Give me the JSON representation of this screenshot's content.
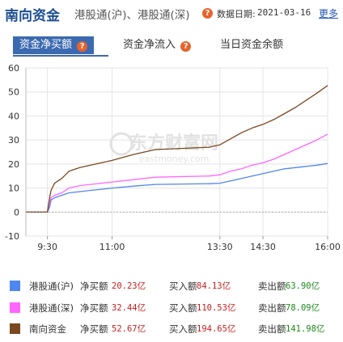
{
  "header": {
    "title": "南向资金",
    "subtitle": "港股通(沪)、港股通(深)",
    "date_label": "数据日期:",
    "date_value": "2021-03-16",
    "more_label": "更多"
  },
  "tabs": [
    {
      "label": "资金净买额",
      "active": true
    },
    {
      "label": "资金净流入",
      "active": false
    },
    {
      "label": "当日资金余额",
      "active": false
    }
  ],
  "watermark": {
    "cn": "东方财富网",
    "en": "eastmoney.com"
  },
  "colors": {
    "hk_sh": "#4f86ef",
    "hk_sz": "#ff66ff",
    "southbound": "#7a4820",
    "accent": "#3c6ab0",
    "buy": "#c81d1d",
    "sell": "#1b8a1b"
  },
  "chart_data": {
    "type": "line",
    "x_ticks": [
      "9:30",
      "11:00",
      "13:30",
      "14:30",
      "16:00"
    ],
    "y_ticks": [
      "60",
      "50",
      "40",
      "30",
      "20",
      "10",
      "0",
      "-10"
    ],
    "ylim": [
      -10,
      60
    ],
    "x_range": [
      "9:00",
      "16:00"
    ],
    "series": [
      {
        "name": "港股通(沪)",
        "color": "#4f86ef",
        "x": [
          "9:00",
          "9:30",
          "9:33",
          "9:35",
          "9:40",
          "9:50",
          "10:00",
          "10:15",
          "10:30",
          "10:45",
          "11:00",
          "11:30",
          "12:00",
          "13:15",
          "13:30",
          "13:45",
          "14:00",
          "14:15",
          "14:30",
          "14:45",
          "15:00",
          "15:15",
          "15:30",
          "15:45",
          "16:00"
        ],
        "y": [
          0,
          0,
          2,
          5,
          6,
          7,
          8,
          8.5,
          9,
          9.5,
          10,
          10.8,
          11.5,
          11.8,
          12,
          13,
          14,
          15,
          16,
          17,
          18,
          18.5,
          19,
          19.5,
          20.23
        ]
      },
      {
        "name": "港股通(深)",
        "color": "#ff66ff",
        "x": [
          "9:00",
          "9:30",
          "9:33",
          "9:35",
          "9:40",
          "9:50",
          "10:00",
          "10:15",
          "10:30",
          "10:45",
          "11:00",
          "11:30",
          "12:00",
          "13:15",
          "13:30",
          "13:45",
          "14:00",
          "14:15",
          "14:30",
          "14:45",
          "15:00",
          "15:15",
          "15:30",
          "15:45",
          "16:00"
        ],
        "y": [
          0,
          0,
          4,
          6,
          7,
          8,
          10,
          11,
          11.5,
          12,
          12.5,
          13.5,
          14.5,
          15,
          15.5,
          17,
          18,
          19.5,
          20.5,
          22,
          24,
          26,
          28,
          30,
          32.44
        ]
      },
      {
        "name": "南向资金",
        "color": "#7a4820",
        "x": [
          "9:00",
          "9:30",
          "9:33",
          "9:35",
          "9:40",
          "9:50",
          "10:00",
          "10:15",
          "10:30",
          "10:45",
          "11:00",
          "11:30",
          "12:00",
          "13:15",
          "13:30",
          "13:45",
          "14:00",
          "14:15",
          "14:30",
          "14:45",
          "15:00",
          "15:15",
          "15:30",
          "15:45",
          "16:00"
        ],
        "y": [
          0,
          0,
          6,
          9,
          12,
          14,
          17,
          18.5,
          19.5,
          20.5,
          21.5,
          24,
          26,
          27,
          28,
          30.5,
          33,
          35,
          36.5,
          38.5,
          41,
          43.5,
          46.5,
          49.5,
          52.67
        ]
      }
    ]
  },
  "legend": [
    {
      "name": "港股通(沪)",
      "net_label": "净买额",
      "net_value": "20.23亿",
      "buy_label": "买入额",
      "buy_value": "84.13亿",
      "sell_label": "卖出额",
      "sell_value": "63.90亿",
      "color": "#4f86ef"
    },
    {
      "name": "港股通(深)",
      "net_label": "净买额",
      "net_value": "32.44亿",
      "buy_label": "买入额",
      "buy_value": "110.53亿",
      "sell_label": "卖出额",
      "sell_value": "78.09亿",
      "color": "#ff66ff"
    },
    {
      "name": "南向资金",
      "net_label": "净买额",
      "net_value": "52.67亿",
      "buy_label": "买入额",
      "buy_value": "194.65亿",
      "sell_label": "卖出额",
      "sell_value": "141.98亿",
      "color": "#7a4820"
    }
  ]
}
